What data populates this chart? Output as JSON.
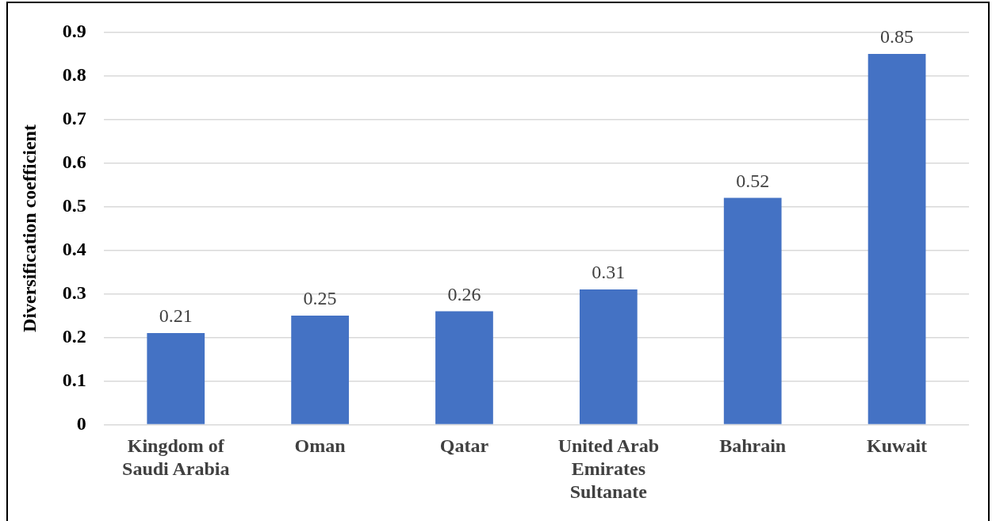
{
  "chart_data": {
    "type": "bar",
    "ylabel": "Diversification coefficient",
    "categories": [
      "Kingdom of Saudi Arabia",
      "Oman",
      "Qatar",
      "United Arab Emirates Sultanate",
      "Bahrain",
      "Kuwait"
    ],
    "values": [
      0.21,
      0.25,
      0.26,
      0.31,
      0.52,
      0.85
    ],
    "color": "#4472c4",
    "ylim": [
      0,
      0.9
    ],
    "yticks": [
      0,
      0.1,
      0.2,
      0.3,
      0.4,
      0.5,
      0.6,
      0.7,
      0.8,
      0.9
    ],
    "grid": "y",
    "data_labels": true
  }
}
